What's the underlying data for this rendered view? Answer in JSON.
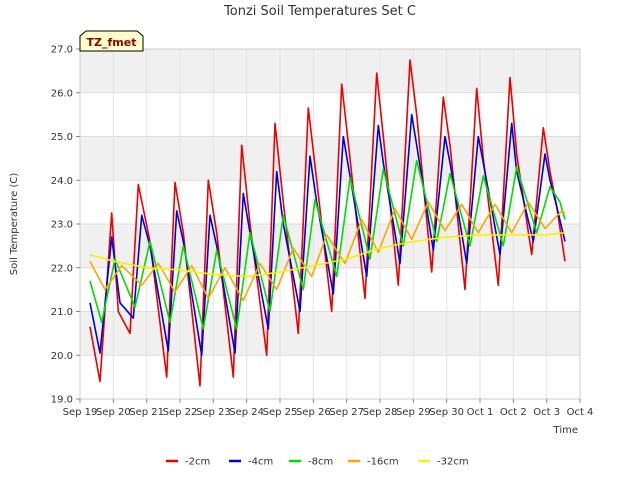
{
  "chart_data": {
    "type": "line",
    "title": "Tonzi Soil Temperatures Set C",
    "xlabel": "Time",
    "ylabel": "Soil Temperature (C)",
    "annotation": "TZ_fmet",
    "ylim": [
      19.0,
      27.0
    ],
    "xlim": [
      0,
      15
    ],
    "y_ticks": [
      19.0,
      20.0,
      21.0,
      22.0,
      23.0,
      24.0,
      25.0,
      26.0,
      27.0
    ],
    "y_tick_labels": [
      "19.0",
      "20.0",
      "21.0",
      "22.0",
      "23.0",
      "24.0",
      "25.0",
      "26.0",
      "27.0"
    ],
    "x_ticks": [
      0,
      1,
      2,
      3,
      4,
      5,
      6,
      7,
      8,
      9,
      10,
      11,
      12,
      13,
      14,
      15
    ],
    "x_tick_labels": [
      "Sep 19",
      "Sep 20",
      "Sep 21",
      "Sep 22",
      "Sep 23",
      "Sep 24",
      "Sep 25",
      "Sep 26",
      "Sep 27",
      "Sep 28",
      "Sep 29",
      "Sep 30",
      "Oct 1",
      "Oct 2",
      "Oct 3",
      "Oct 4"
    ],
    "grid": true,
    "legend_position": "bottom",
    "series": [
      {
        "name": "-2cm",
        "color": "#ee0000",
        "x": [
          0.3,
          0.6,
          0.95,
          1.15,
          1.5,
          1.75,
          2.1,
          2.6,
          2.85,
          3.1,
          3.6,
          3.85,
          4.1,
          4.6,
          4.85,
          5.1,
          5.6,
          5.85,
          6.1,
          6.55,
          6.85,
          7.1,
          7.55,
          7.85,
          8.1,
          8.55,
          8.9,
          9.1,
          9.55,
          9.9,
          10.1,
          10.55,
          10.9,
          11.1,
          11.55,
          11.9,
          12.1,
          12.55,
          12.9,
          13.1,
          13.55,
          13.9,
          14.1,
          14.3,
          14.55
        ],
        "y": [
          20.65,
          19.4,
          23.25,
          21.0,
          20.5,
          23.9,
          22.6,
          19.5,
          23.95,
          22.8,
          19.3,
          24.0,
          22.8,
          19.5,
          24.8,
          23.0,
          20.0,
          25.3,
          23.5,
          20.5,
          25.65,
          24.0,
          21.0,
          26.2,
          24.5,
          21.3,
          26.45,
          25.0,
          21.6,
          26.75,
          25.5,
          21.9,
          25.9,
          24.8,
          21.5,
          26.1,
          24.5,
          21.6,
          26.35,
          24.6,
          22.3,
          25.2,
          24.2,
          23.4,
          22.15
        ]
      },
      {
        "name": "-4cm",
        "color": "#0000dd",
        "x": [
          0.3,
          0.6,
          0.95,
          1.2,
          1.6,
          1.85,
          2.1,
          2.65,
          2.9,
          3.1,
          3.65,
          3.9,
          4.1,
          4.65,
          4.9,
          5.1,
          5.65,
          5.9,
          6.1,
          6.6,
          6.9,
          7.1,
          7.6,
          7.9,
          8.1,
          8.6,
          8.95,
          9.1,
          9.6,
          9.95,
          10.1,
          10.6,
          10.95,
          11.1,
          11.6,
          11.95,
          12.1,
          12.6,
          12.95,
          13.1,
          13.6,
          13.95,
          14.1,
          14.3,
          14.55
        ],
        "y": [
          21.2,
          20.05,
          22.7,
          21.2,
          20.85,
          23.2,
          22.5,
          20.1,
          23.3,
          22.6,
          20.0,
          23.2,
          22.5,
          20.05,
          23.7,
          22.8,
          20.6,
          24.2,
          23.0,
          21.0,
          24.55,
          23.5,
          21.4,
          25.0,
          24.1,
          21.8,
          25.25,
          24.4,
          22.1,
          25.5,
          24.8,
          22.4,
          25.0,
          24.4,
          22.1,
          25.0,
          24.4,
          22.3,
          25.3,
          24.2,
          22.6,
          24.6,
          24.0,
          23.4,
          22.6
        ]
      },
      {
        "name": "-8cm",
        "color": "#00dd00",
        "x": [
          0.3,
          0.65,
          1.05,
          1.65,
          2.1,
          2.7,
          3.1,
          3.7,
          4.1,
          4.7,
          5.1,
          5.7,
          6.1,
          6.7,
          7.05,
          7.7,
          8.1,
          8.7,
          9.1,
          9.7,
          10.1,
          10.7,
          11.1,
          11.7,
          12.1,
          12.7,
          13.1,
          13.7,
          14.1,
          14.4,
          14.55
        ],
        "y": [
          21.7,
          20.75,
          22.2,
          21.1,
          22.6,
          20.75,
          22.5,
          20.6,
          22.4,
          20.6,
          22.8,
          21.0,
          23.2,
          21.5,
          23.55,
          21.8,
          24.05,
          22.2,
          24.25,
          22.5,
          24.45,
          22.6,
          24.15,
          22.5,
          24.1,
          22.5,
          24.3,
          22.8,
          23.85,
          23.5,
          23.1
        ]
      },
      {
        "name": "-16cm",
        "color": "#ffa500",
        "x": [
          0.3,
          0.75,
          1.25,
          1.85,
          2.35,
          2.85,
          3.35,
          3.85,
          4.35,
          4.9,
          5.4,
          5.9,
          6.4,
          6.95,
          7.4,
          7.95,
          8.45,
          8.95,
          9.45,
          9.95,
          10.45,
          10.95,
          11.45,
          11.95,
          12.45,
          12.95,
          13.45,
          13.95,
          14.45,
          14.55
        ],
        "y": [
          22.15,
          21.5,
          22.05,
          21.6,
          22.1,
          21.45,
          22.05,
          21.3,
          22.0,
          21.25,
          22.1,
          21.5,
          22.45,
          21.8,
          22.75,
          22.1,
          23.1,
          22.35,
          23.35,
          22.65,
          23.5,
          22.85,
          23.45,
          22.8,
          23.45,
          22.8,
          23.5,
          22.9,
          23.3,
          23.25
        ]
      },
      {
        "name": "-32cm",
        "color": "#ffee00",
        "x": [
          0.3,
          1.0,
          2.0,
          3.0,
          4.0,
          5.0,
          6.0,
          7.0,
          8.0,
          9.0,
          10.0,
          11.0,
          12.0,
          13.0,
          14.0,
          14.55
        ],
        "y": [
          22.3,
          22.15,
          22.0,
          21.95,
          21.85,
          21.8,
          21.9,
          22.05,
          22.2,
          22.45,
          22.6,
          22.7,
          22.75,
          22.75,
          22.75,
          22.8
        ]
      }
    ]
  }
}
